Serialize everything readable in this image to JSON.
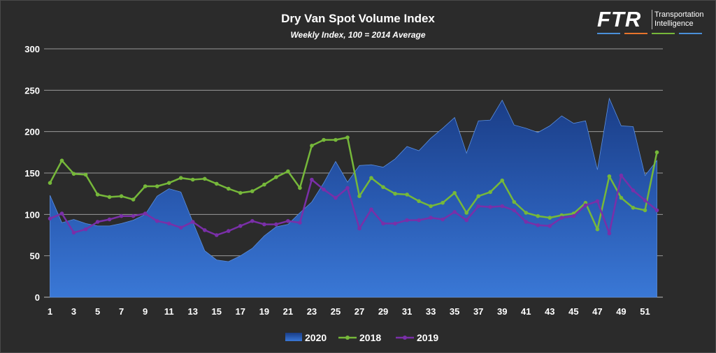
{
  "chart_data": {
    "type": "line",
    "title": "Dry Van Spot Volume Index",
    "subtitle": "Weekly Index, 100 = 2014 Average",
    "xlabel": "",
    "ylabel": "",
    "x": [
      1,
      2,
      3,
      4,
      5,
      6,
      7,
      8,
      9,
      10,
      11,
      12,
      13,
      14,
      15,
      16,
      17,
      18,
      19,
      20,
      21,
      22,
      23,
      24,
      25,
      26,
      27,
      28,
      29,
      30,
      31,
      32,
      33,
      34,
      35,
      36,
      37,
      38,
      39,
      40,
      41,
      42,
      43,
      44,
      45,
      46,
      47,
      48,
      49,
      50,
      51,
      52
    ],
    "x_tick_labels": [
      "1",
      "3",
      "5",
      "7",
      "9",
      "11",
      "13",
      "15",
      "17",
      "19",
      "21",
      "23",
      "25",
      "27",
      "29",
      "31",
      "33",
      "35",
      "37",
      "39",
      "41",
      "43",
      "45",
      "47",
      "49",
      "51"
    ],
    "x_tick_values": [
      1,
      3,
      5,
      7,
      9,
      11,
      13,
      15,
      17,
      19,
      21,
      23,
      25,
      27,
      29,
      31,
      33,
      35,
      37,
      39,
      41,
      43,
      45,
      47,
      49,
      51
    ],
    "y_tick_labels": [
      "0",
      "50",
      "100",
      "150",
      "200",
      "250",
      "300"
    ],
    "y_tick_values": [
      0,
      50,
      100,
      150,
      200,
      250,
      300
    ],
    "ylim": [
      0,
      300
    ],
    "grid": "horizontal",
    "legend_position": "bottom",
    "series": [
      {
        "name": "2020",
        "type": "area",
        "color": "#2e5fb5",
        "values": [
          123,
          90,
          94,
          89,
          86,
          86,
          89,
          93,
          100,
          122,
          131,
          127,
          91,
          56,
          45,
          43,
          50,
          59,
          74,
          85,
          88,
          102,
          115,
          138,
          164,
          139,
          159,
          160,
          157,
          167,
          182,
          177,
          192,
          204,
          217,
          174,
          213,
          214,
          238,
          208,
          204,
          199,
          207,
          219,
          210,
          213,
          154,
          240,
          207,
          206,
          147,
          165
        ]
      },
      {
        "name": "2018",
        "type": "line",
        "color": "#76b83a",
        "values": [
          138,
          165,
          149,
          148,
          124,
          121,
          122,
          118,
          134,
          134,
          138,
          144,
          142,
          143,
          137,
          131,
          126,
          128,
          136,
          145,
          152,
          132,
          183,
          190,
          190,
          193,
          122,
          144,
          133,
          125,
          124,
          116,
          110,
          114,
          126,
          102,
          122,
          127,
          141,
          115,
          102,
          98,
          96,
          99,
          101,
          114,
          82,
          146,
          120,
          108,
          105,
          175
        ]
      },
      {
        "name": "2019",
        "type": "line",
        "color": "#7a2fa8",
        "values": [
          95,
          101,
          78,
          82,
          91,
          94,
          98,
          98,
          101,
          92,
          89,
          84,
          91,
          81,
          75,
          80,
          86,
          92,
          88,
          88,
          92,
          90,
          142,
          130,
          120,
          132,
          83,
          106,
          89,
          89,
          93,
          93,
          96,
          94,
          103,
          93,
          110,
          109,
          110,
          105,
          91,
          87,
          86,
          96,
          98,
          111,
          116,
          77,
          147,
          129,
          117,
          105
        ]
      }
    ]
  },
  "logo": {
    "mark": "FTR",
    "line1": "Transportation",
    "line2": "Intelligence",
    "bar_colors": [
      "#4a90d9",
      "#e8742c",
      "#76b83a",
      "#4a90d9"
    ]
  }
}
